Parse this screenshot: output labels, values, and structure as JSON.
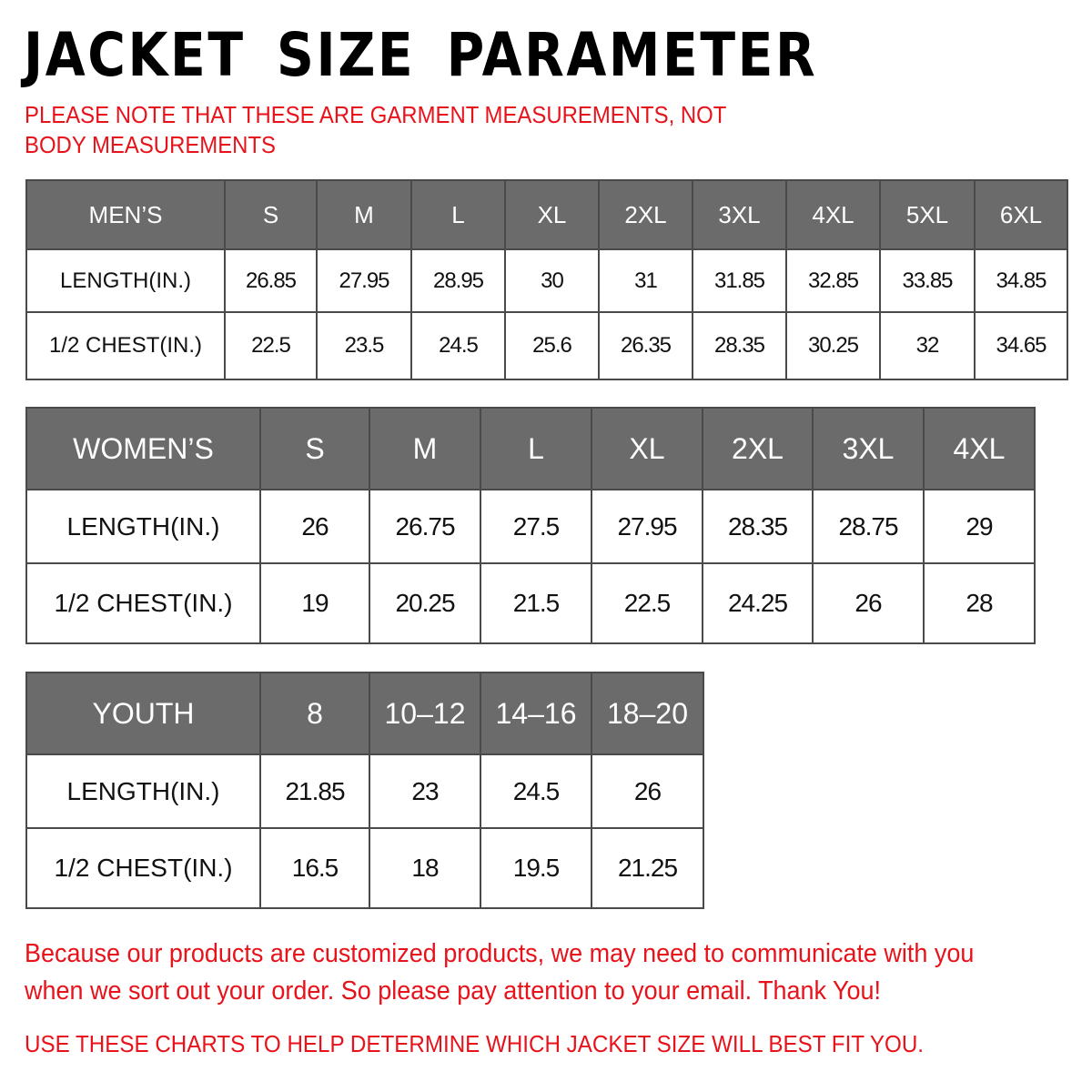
{
  "title": "JACKET SIZE PARAMETER",
  "note": "PLEASE NOTE THAT THESE ARE GARMENT MEASUREMENTS, NOT BODY MEASUREMENTS",
  "colors": {
    "header_bg": "#6b6b6b",
    "accent_red": "#e8121b"
  },
  "tables": {
    "men": {
      "header": [
        "MEN’S",
        "S",
        "M",
        "L",
        "XL",
        "2XL",
        "3XL",
        "4XL",
        "5XL",
        "6XL"
      ],
      "rows": [
        [
          "LENGTH(IN.)",
          "26.85",
          "27.95",
          "28.95",
          "30",
          "31",
          "31.85",
          "32.85",
          "33.85",
          "34.85"
        ],
        [
          "1/2 CHEST(IN.)",
          "22.5",
          "23.5",
          "24.5",
          "25.6",
          "26.35",
          "28.35",
          "30.25",
          "32",
          "34.65"
        ]
      ]
    },
    "women": {
      "header": [
        "WOMEN’S",
        "S",
        "M",
        "L",
        "XL",
        "2XL",
        "3XL",
        "4XL"
      ],
      "rows": [
        [
          "LENGTH(IN.)",
          "26",
          "26.75",
          "27.5",
          "27.95",
          "28.35",
          "28.75",
          "29"
        ],
        [
          "1/2 CHEST(IN.)",
          "19",
          "20.25",
          "21.5",
          "22.5",
          "24.25",
          "26",
          "28"
        ]
      ]
    },
    "youth": {
      "header": [
        "YOUTH",
        "8",
        "10–12",
        "14–16",
        "18–20"
      ],
      "rows": [
        [
          "LENGTH(IN.)",
          "21.85",
          "23",
          "24.5",
          "26"
        ],
        [
          "1/2 CHEST(IN.)",
          "16.5",
          "18",
          "19.5",
          "21.25"
        ]
      ]
    }
  },
  "footer": {
    "message": "Because our products are customized products, we may need to communicate with you when we sort out your order. So please pay attention to your email. Thank You!",
    "advice": "USE THESE CHARTS TO HELP DETERMINE WHICH JACKET SIZE WILL BEST FIT YOU."
  }
}
